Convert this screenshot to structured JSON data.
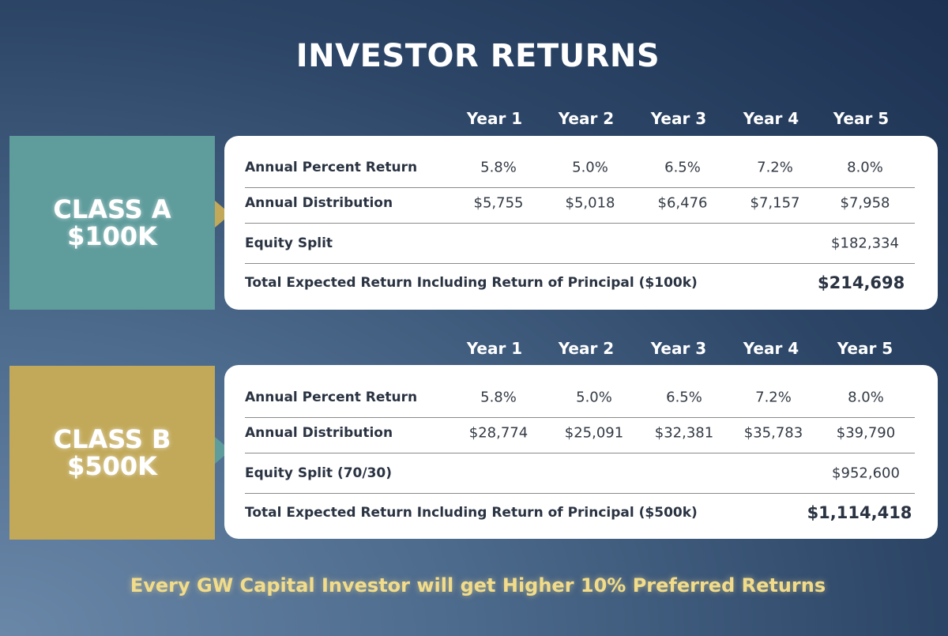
{
  "title": "INVESTOR RETURNS",
  "class_a": {
    "name": "CLASS A",
    "amount": "$100K",
    "years": [
      "Year 1",
      "Year 2",
      "Year 3",
      "Year 4",
      "Year 5"
    ],
    "rows": [
      {
        "label": "Annual Percent Return",
        "values": [
          "5.8%",
          "5.0%",
          "6.5%",
          "7.2%",
          "8.0%"
        ]
      },
      {
        "label": "Annual Distribution",
        "values": [
          "$5,755",
          "$5,018",
          "$6,476",
          "$7,157",
          "$7,958"
        ]
      },
      {
        "label": "Equity Split",
        "values": [
          "",
          "",
          "",
          "",
          "$182,334"
        ]
      },
      {
        "label": "Total Expected Return Including Return of Principal ($100k)",
        "values": [
          "",
          "",
          "",
          "",
          "$214,698"
        ]
      }
    ]
  },
  "class_b": {
    "name": "CLASS B",
    "amount": "$500K",
    "years": [
      "Year 1",
      "Year 2",
      "Year 3",
      "Year 4",
      "Year 5"
    ],
    "rows": [
      {
        "label": "Annual Percent Return",
        "values": [
          "5.8%",
          "5.0%",
          "6.5%",
          "7.2%",
          "8.0%"
        ]
      },
      {
        "label": "Annual Distribution",
        "values": [
          "$28,774",
          "$25,091",
          "$32,381",
          "$35,783",
          "$39,790"
        ]
      },
      {
        "label": "Equity Split (70/30)",
        "values": [
          "",
          "",
          "",
          "",
          "$952,600"
        ]
      },
      {
        "label": "Total Expected Return Including Return of Principal ($500k)",
        "values": [
          "",
          "",
          "",
          "",
          "$1,114,418"
        ]
      }
    ]
  },
  "footer": "Every GW Capital Investor will get Higher 10%  Preferred Returns",
  "colors": {
    "class_a_accent": "#5f9c9c",
    "class_b_accent": "#c2a95a",
    "footer_text": "#f2dc8a"
  }
}
